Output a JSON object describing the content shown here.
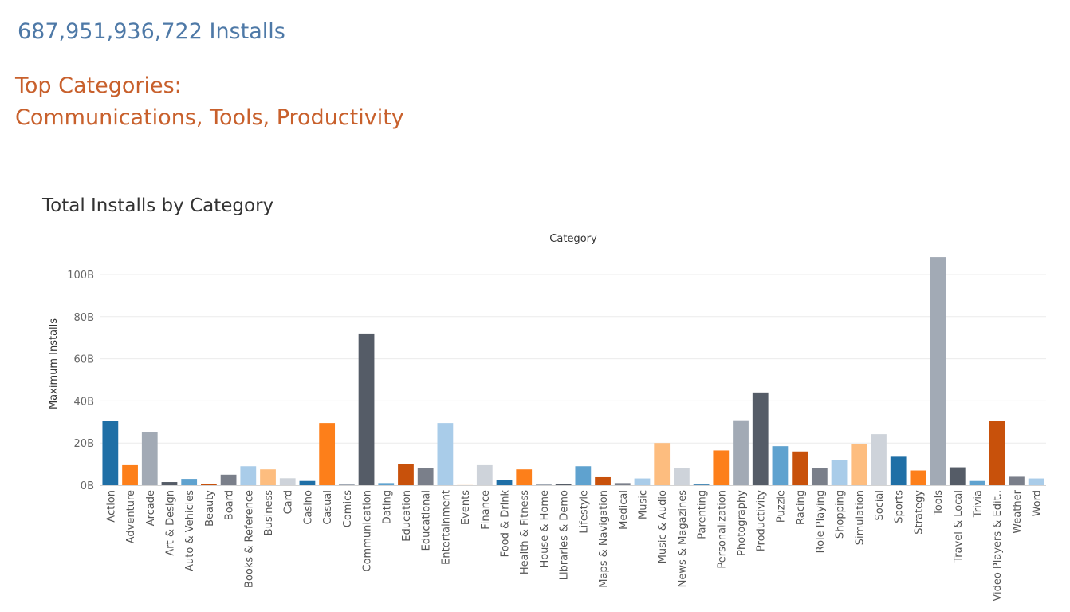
{
  "headline": {
    "total_installs": "687,951,936,722",
    "suffix": "Installs"
  },
  "top_categories": {
    "heading": "Top Categories:",
    "list": "Communications, Tools, Productivity"
  },
  "chart_data": {
    "type": "bar",
    "title": "Total Installs by Category",
    "xlabel": "Category",
    "ylabel": "Maximum Installs",
    "ylim": [
      0,
      110
    ],
    "y_ticks": [
      0,
      20,
      40,
      60,
      80,
      100
    ],
    "y_tick_labels": [
      "0B",
      "20B",
      "40B",
      "60B",
      "80B",
      "100B"
    ],
    "grid": true,
    "categories": [
      "Action",
      "Adventure",
      "Arcade",
      "Art & Design",
      "Auto & Vehicles",
      "Beauty",
      "Board",
      "Books & Reference",
      "Business",
      "Card",
      "Casino",
      "Casual",
      "Comics",
      "Communication",
      "Dating",
      "Education",
      "Educational",
      "Entertainment",
      "Events",
      "Finance",
      "Food & Drink",
      "Health & Fitness",
      "House & Home",
      "Libraries & Demo",
      "Lifestyle",
      "Maps & Navigation",
      "Medical",
      "Music",
      "Music & Audio",
      "News & Magazines",
      "Parenting",
      "Personalization",
      "Photography",
      "Productivity",
      "Puzzle",
      "Racing",
      "Role Playing",
      "Shopping",
      "Simulation",
      "Social",
      "Sports",
      "Strategy",
      "Tools",
      "Travel & Local",
      "Trivia",
      "Video Players & Edit..",
      "Weather",
      "Word"
    ],
    "values": [
      30.5,
      9.5,
      25,
      1.5,
      3,
      0.6,
      5,
      9,
      7.5,
      3.3,
      2,
      29.5,
      0.6,
      72,
      1,
      10,
      8,
      29.5,
      0.05,
      9.5,
      2.5,
      7.5,
      0.6,
      0.6,
      9,
      3.8,
      1,
      3.2,
      20,
      8,
      0.3,
      16.5,
      30.8,
      44,
      18.5,
      16,
      8,
      12,
      19.5,
      24.2,
      13.5,
      7,
      108.3,
      8.5,
      2,
      30.5,
      4,
      3.2
    ],
    "colors": [
      "#1f6fa6",
      "#fd7f1a",
      "#a2aab5",
      "#555c67",
      "#5fa2cf",
      "#c8510b",
      "#7a7f8a",
      "#a9cce9",
      "#fdbd7f",
      "#ced3da",
      "#1f6fa6",
      "#fd7f1a",
      "#a2aab5",
      "#555c67",
      "#5fa2cf",
      "#c8510b",
      "#7a7f8a",
      "#a9cce9",
      "#fdbd7f",
      "#ced3da",
      "#1f6fa6",
      "#fd7f1a",
      "#a2aab5",
      "#555c67",
      "#5fa2cf",
      "#c8510b",
      "#7a7f8a",
      "#a9cce9",
      "#fdbd7f",
      "#ced3da",
      "#1f6fa6",
      "#fd7f1a",
      "#a2aab5",
      "#555c67",
      "#5fa2cf",
      "#c8510b",
      "#7a7f8a",
      "#a9cce9",
      "#fdbd7f",
      "#ced3da",
      "#1f6fa6",
      "#fd7f1a",
      "#a2aab5",
      "#555c67",
      "#5fa2cf",
      "#c8510b",
      "#7a7f8a",
      "#a9cce9"
    ]
  }
}
